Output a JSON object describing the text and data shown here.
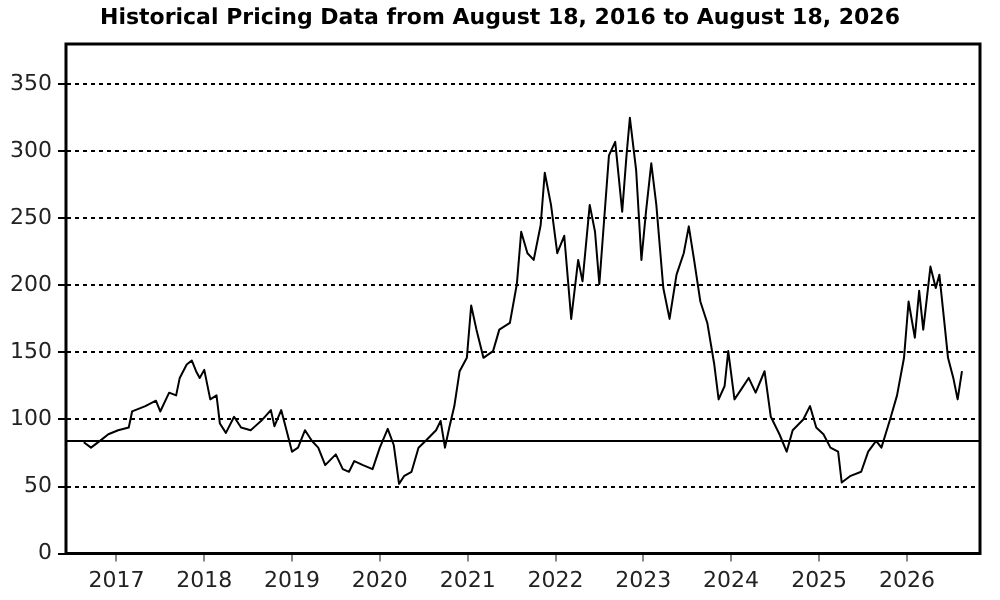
{
  "chart_data": {
    "type": "line",
    "title": "Historical Pricing Data from August 18, 2016 to August 18, 2026",
    "x": [
      "2016-08-18",
      "2016-09-17",
      "2016-10-31",
      "2016-11-28",
      "2017-01-08",
      "2017-02-21",
      "2017-03-07",
      "2017-05-01",
      "2017-06-14",
      "2017-07-02",
      "2017-08-08",
      "2017-09-06",
      "2017-09-21",
      "2017-10-20",
      "2017-11-10",
      "2017-11-28",
      "2017-12-13",
      "2018-01-01",
      "2018-01-26",
      "2018-02-21",
      "2018-03-07",
      "2018-04-01",
      "2018-05-05",
      "2018-06-03",
      "2018-07-13",
      "2018-08-26",
      "2018-10-05",
      "2018-10-20",
      "2018-11-17",
      "2018-12-09",
      "2019-01-01",
      "2019-01-26",
      "2019-02-24",
      "2019-03-25",
      "2019-04-20",
      "2019-05-19",
      "2019-07-02",
      "2019-07-31",
      "2019-08-26",
      "2019-09-17",
      "2019-10-23",
      "2019-12-02",
      "2020-01-01",
      "2020-02-03",
      "2020-02-28",
      "2020-03-21",
      "2020-04-12",
      "2020-05-12",
      "2020-06-10",
      "2020-07-09",
      "2020-08-22",
      "2020-09-10",
      "2020-09-28",
      "2020-10-16",
      "2020-11-06",
      "2020-11-28",
      "2020-12-28",
      "2021-01-15",
      "2021-02-06",
      "2021-03-07",
      "2021-04-16",
      "2021-05-12",
      "2021-06-25",
      "2021-07-24",
      "2021-08-11",
      "2021-09-06",
      "2021-10-02",
      "2021-10-31",
      "2021-11-17",
      "2021-12-13",
      "2022-01-08",
      "2022-02-06",
      "2022-03-07",
      "2022-04-05",
      "2022-04-23",
      "2022-05-23",
      "2022-06-14",
      "2022-07-02",
      "2022-08-11",
      "2022-09-06",
      "2022-10-05",
      "2022-10-23",
      "2022-11-06",
      "2022-12-02",
      "2022-12-24",
      "2023-01-12",
      "2023-02-03",
      "2023-02-24",
      "2023-03-25",
      "2023-04-20",
      "2023-05-19",
      "2023-06-18",
      "2023-07-09",
      "2023-07-31",
      "2023-08-26",
      "2023-09-24",
      "2023-10-23",
      "2023-11-10",
      "2023-12-05",
      "2023-12-20",
      "2024-01-15",
      "2024-02-14",
      "2024-03-14",
      "2024-04-12",
      "2024-05-19",
      "2024-06-14",
      "2024-07-20",
      "2024-08-19",
      "2024-09-13",
      "2024-10-27",
      "2024-11-24",
      "2024-12-20",
      "2025-01-19",
      "2025-02-17",
      "2025-03-21",
      "2025-04-05",
      "2025-05-12",
      "2025-06-25",
      "2025-07-24",
      "2025-08-26",
      "2025-09-17",
      "2025-10-23",
      "2025-11-21",
      "2025-12-20",
      "2026-01-08",
      "2026-02-03",
      "2026-02-21",
      "2026-03-10",
      "2026-04-09",
      "2026-05-01",
      "2026-05-16",
      "2026-06-06",
      "2026-06-21",
      "2026-07-13",
      "2026-07-31",
      "2026-08-18"
    ],
    "series": [
      {
        "color": "#000000",
        "values": [
          83,
          79,
          85,
          89,
          92,
          94,
          106,
          110,
          114,
          106,
          120,
          118,
          131,
          141,
          144,
          136,
          131,
          137,
          115,
          118,
          97,
          90,
          102,
          94,
          92,
          99,
          107,
          95,
          107,
          92,
          76,
          79,
          92,
          84,
          79,
          66,
          74,
          63,
          61,
          69,
          66,
          63,
          79,
          93,
          81,
          52,
          58,
          61,
          79,
          84,
          92,
          99,
          79,
          94,
          110,
          136,
          146,
          185,
          167,
          146,
          151,
          167,
          172,
          201,
          240,
          224,
          219,
          245,
          284,
          260,
          224,
          237,
          175,
          219,
          203,
          260,
          240,
          201,
          297,
          307,
          255,
          297,
          325,
          286,
          219,
          255,
          291,
          260,
          198,
          175,
          208,
          224,
          244,
          219,
          188,
          172,
          141,
          115,
          125,
          151,
          115,
          123,
          131,
          120,
          136,
          102,
          89,
          76,
          92,
          100,
          110,
          94,
          89,
          79,
          76,
          53,
          58,
          61,
          76,
          84,
          79,
          100,
          118,
          146,
          188,
          161,
          196,
          167,
          214,
          198,
          208,
          172,
          146,
          131,
          115,
          136
        ]
      }
    ],
    "xlim": [
      "2016-06-05",
      "2026-11-01"
    ],
    "xticks": [
      "2017",
      "2018",
      "2019",
      "2020",
      "2021",
      "2022",
      "2023",
      "2024",
      "2025",
      "2026"
    ],
    "ylim": [
      0,
      380
    ],
    "yticks": [
      0,
      50,
      100,
      150,
      200,
      250,
      300,
      350
    ],
    "grid": "y",
    "marker": "none",
    "line_style": "solid",
    "ref_lines": [
      {
        "axis": "y",
        "value": 84,
        "color": "#000000",
        "line_style": "solid"
      }
    ]
  }
}
